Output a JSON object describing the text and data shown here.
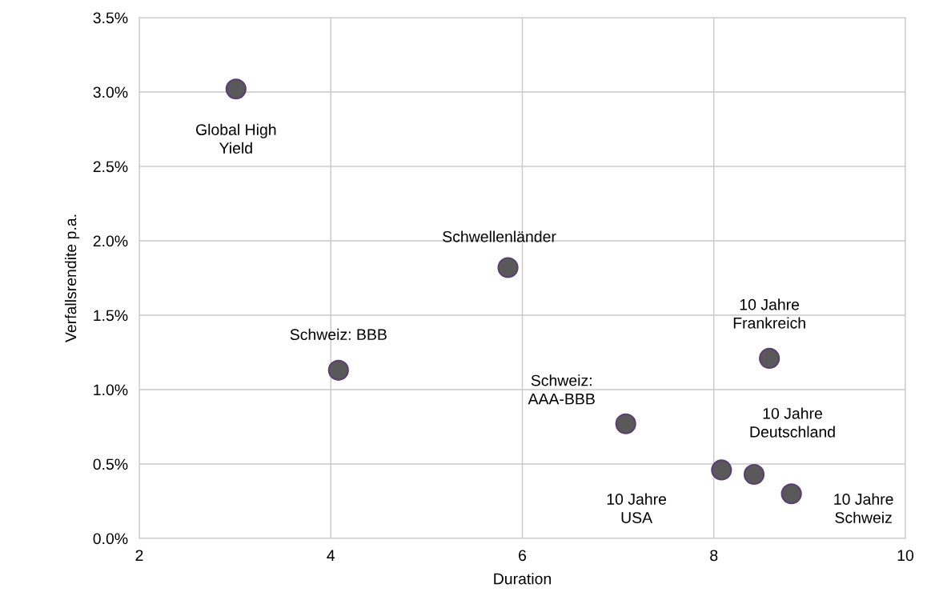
{
  "chart_data": {
    "type": "scatter",
    "xlabel": "Duration",
    "ylabel": "Verfallsrendite p.a.",
    "series": [
      {
        "color": "#595959",
        "x": [
          3.01,
          4.08,
          5.85,
          7.08,
          8.08,
          8.42,
          8.58,
          8.81
        ],
        "values": [
          3.02,
          1.13,
          1.82,
          0.77,
          0.46,
          0.43,
          1.21,
          0.3
        ]
      }
    ],
    "marker": "circle",
    "xlim": [
      2,
      10
    ],
    "xticks": [
      2,
      4,
      6,
      8,
      10
    ],
    "ylim": [
      0,
      3.5
    ],
    "yticks": [
      {
        "value": 0,
        "label": "0.0%"
      },
      {
        "value": 0.5,
        "label": "0.5%"
      },
      {
        "value": 1.0,
        "label": "1.0%"
      },
      {
        "value": 1.5,
        "label": "1.5%"
      },
      {
        "value": 2.0,
        "label": "2.0%"
      },
      {
        "value": 2.5,
        "label": "2.5%"
      },
      {
        "value": 3.0,
        "label": "3.0%"
      },
      {
        "value": 3.5,
        "label": "3.5%"
      }
    ],
    "grid": true,
    "annotations": [
      {
        "text": "Global High\nYield",
        "x": 3.01,
        "y": 3.02
      },
      {
        "text": "Schweiz: BBB",
        "x": 4.08,
        "y": 1.13
      },
      {
        "text": "Schwellenländer",
        "x": 5.85,
        "y": 1.82
      },
      {
        "text": "Schweiz:\nAAA-BBB",
        "x": 7.08,
        "y": 0.77
      },
      "10 Jahre\nUSA",
      {
        "text": "10 Jahre\nDeutschland",
        "x": 8.42,
        "y": 0.43
      },
      {
        "text": "10 Jahre\nFrankreich",
        "x": 8.58,
        "y": 1.21
      },
      {
        "text": "10 Jahre\nSchweiz",
        "x": 8.81,
        "y": 0.3
      }
    ]
  }
}
